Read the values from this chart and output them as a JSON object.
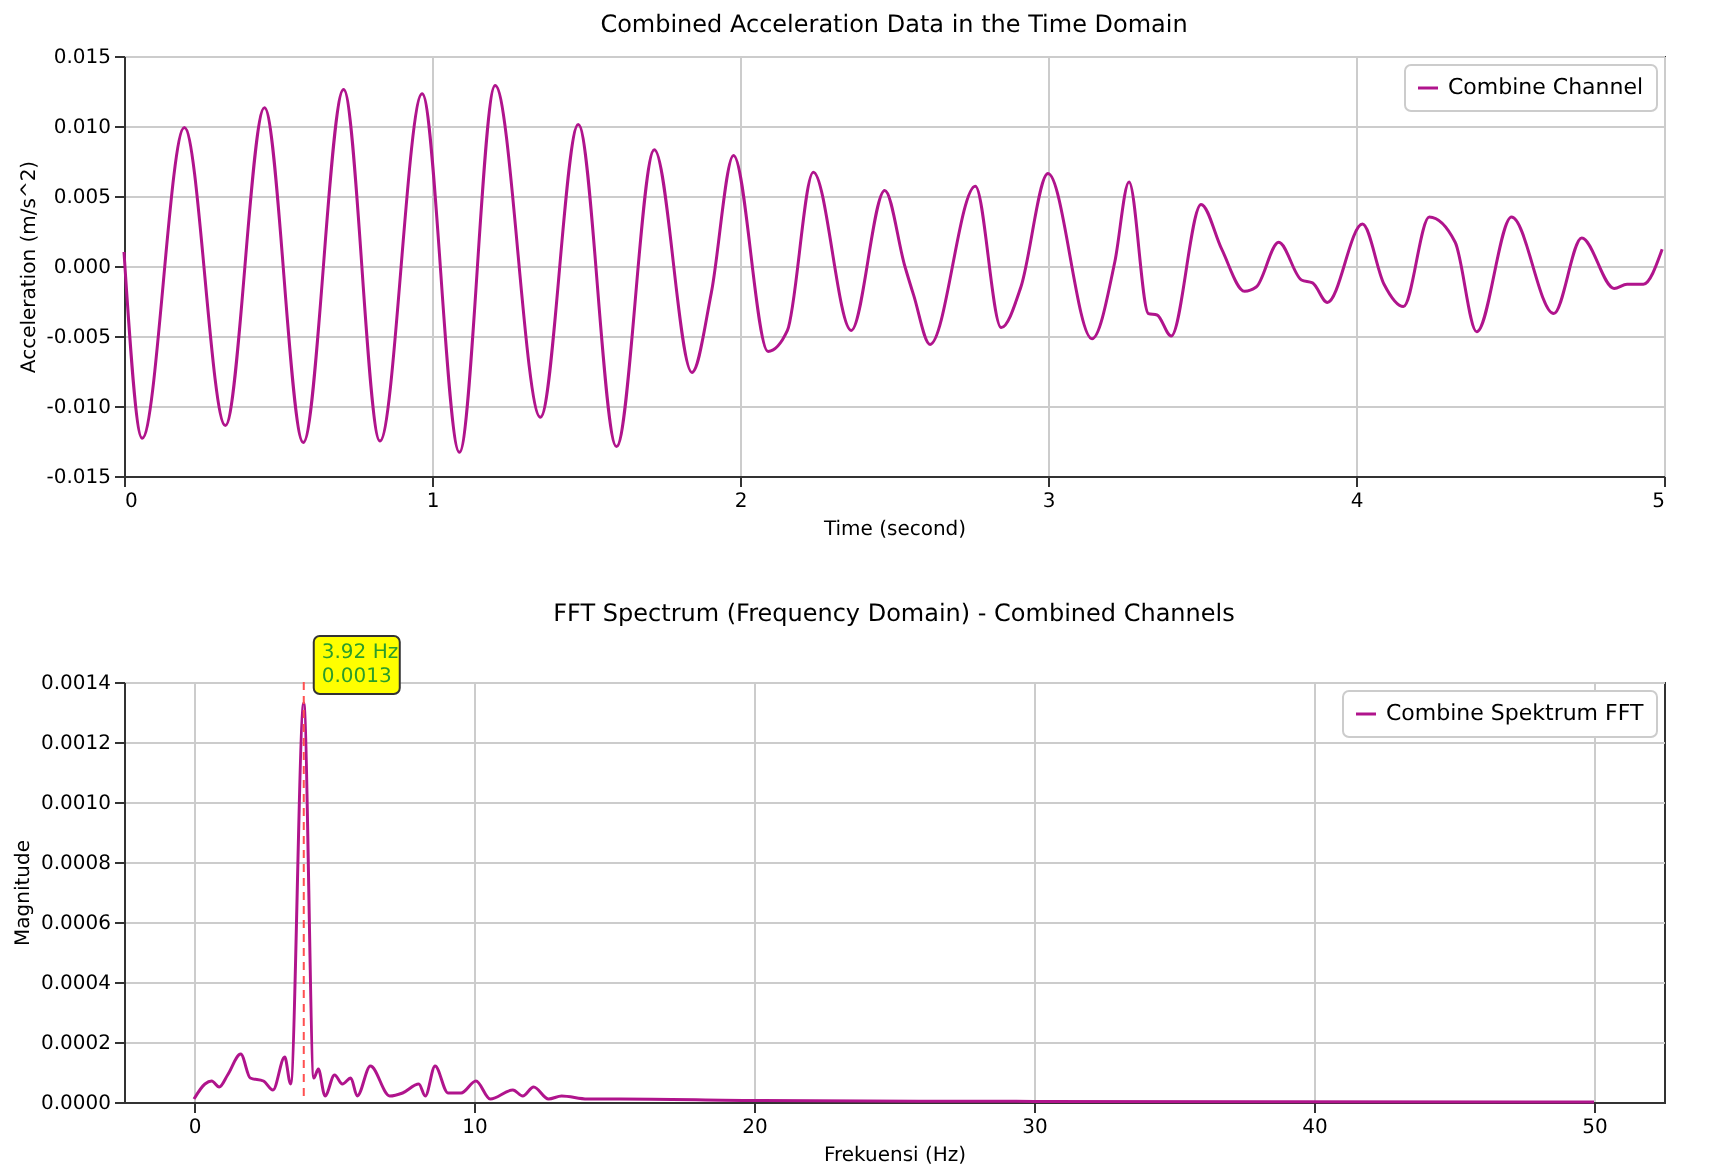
{
  "chart_data": [
    {
      "type": "line",
      "title": "Combined Acceleration Data in the Time Domain",
      "xlabel": "Time (second)",
      "ylabel": "Acceleration (m/s^2)",
      "xlim": [
        0,
        5
      ],
      "ylim": [
        -0.015,
        0.015
      ],
      "xticks": [
        0,
        1,
        2,
        3,
        4,
        5
      ],
      "yticks": [
        {
          "value": -0.015,
          "label": "-0.015"
        },
        {
          "value": -0.01,
          "label": "-0.010"
        },
        {
          "value": -0.005,
          "label": "-0.005"
        },
        {
          "value": 0,
          "label": "0.000"
        },
        {
          "value": 0.005,
          "label": "0.005"
        },
        {
          "value": 0.01,
          "label": "0.010"
        },
        {
          "value": 0.015,
          "label": "0.015"
        }
      ],
      "grid": true,
      "legend": "top right",
      "series": [
        {
          "name": "Combine Channel",
          "color": "#b0148c",
          "x": [
            0,
            0.059,
            0.196,
            0.329,
            0.456,
            0.582,
            0.713,
            0.831,
            0.968,
            1.089,
            1.205,
            1.352,
            1.475,
            1.599,
            1.722,
            1.844,
            1.907,
            1.979,
            2.091,
            2.154,
            2.238,
            2.361,
            2.47,
            2.535,
            2.564,
            2.617,
            2.764,
            2.848,
            2.912,
            3.0,
            3.143,
            3.217,
            3.263,
            3.326,
            3.354,
            3.4,
            3.497,
            3.564,
            3.638,
            3.676,
            3.749,
            3.823,
            3.859,
            3.907,
            4.021,
            4.091,
            4.154,
            4.238,
            4.322,
            4.392,
            4.505,
            4.642,
            4.733,
            4.838,
            4.88,
            4.933,
            4.994
          ],
          "values": [
            0.001,
            -0.0123,
            0.0099,
            -0.0114,
            0.0113,
            -0.0126,
            0.0126,
            -0.0125,
            0.0123,
            -0.0133,
            0.0129,
            -0.0108,
            0.0101,
            -0.0129,
            0.0083,
            -0.0076,
            -0.0019,
            0.0079,
            -0.0061,
            -0.0046,
            0.0067,
            -0.0046,
            0.0054,
            0.0,
            -0.0021,
            -0.0056,
            0.0057,
            -0.0044,
            -0.0015,
            0.0066,
            -0.0052,
            0.0003,
            0.006,
            -0.0034,
            -0.0035,
            -0.005,
            0.0044,
            0.0012,
            -0.0018,
            -0.0015,
            0.0017,
            -0.001,
            -0.0012,
            -0.0026,
            0.003,
            -0.0013,
            -0.0029,
            0.0035,
            0.0017,
            -0.0047,
            0.0035,
            -0.0034,
            0.002,
            -0.0016,
            -0.0013,
            -0.0013,
            0.0012
          ]
        }
      ]
    },
    {
      "type": "line",
      "title": "FFT Spectrum (Frequency Domain) - Combined Channels",
      "xlabel": "Frekuensi (Hz)",
      "ylabel": "Magnitude",
      "xlim": [
        -2.5,
        52.5
      ],
      "ylim": [
        0,
        0.0014
      ],
      "xticks": [
        0,
        10,
        20,
        30,
        40,
        50
      ],
      "yticks": [
        {
          "value": 0,
          "label": "0.0000"
        },
        {
          "value": 0.0002,
          "label": "0.0002"
        },
        {
          "value": 0.0004,
          "label": "0.0004"
        },
        {
          "value": 0.0006,
          "label": "0.0006"
        },
        {
          "value": 0.0008,
          "label": "0.0008"
        },
        {
          "value": 0.001,
          "label": "0.0010"
        },
        {
          "value": 0.0012,
          "label": "0.0012"
        },
        {
          "value": 0.0014,
          "label": "0.0014"
        }
      ],
      "grid": true,
      "legend": "top right",
      "ref_lines": [
        {
          "axis": "x",
          "value": 3.92,
          "color": "#ff5050",
          "line_style": "dashed"
        }
      ],
      "annotations": [
        {
          "text": "3.92 Hz\n0.0013",
          "x": 3.92,
          "y": 0.0013
        }
      ],
      "series": [
        {
          "name": "Combine Spektrum FFT",
          "color": "#b0148c",
          "x": [
            0,
            0.39,
            0.63,
            0.9,
            1.2,
            1.67,
            2.01,
            2.48,
            2.82,
            3.24,
            3.45,
            3.92,
            4.28,
            4.44,
            4.68,
            5.02,
            5.3,
            5.6,
            5.83,
            6.3,
            6.99,
            7.45,
            8.03,
            8.26,
            8.61,
            9.07,
            9.54,
            10.07,
            10.58,
            11.39,
            11.74,
            12.13,
            12.66,
            13.13,
            14.05,
            15.2,
            20,
            30,
            50
          ],
          "values": [
            1e-05,
            6e-05,
            7e-05,
            5e-05,
            9e-05,
            0.00016,
            8e-05,
            7e-05,
            4e-05,
            0.00015,
            6e-05,
            0.00133,
            8e-05,
            0.00011,
            2e-05,
            9e-05,
            6e-05,
            8e-05,
            2e-05,
            0.00012,
            2e-05,
            3e-05,
            6e-05,
            2e-05,
            0.00012,
            3e-05,
            3e-05,
            7e-05,
            1e-05,
            4e-05,
            2e-05,
            5e-05,
            1e-05,
            2e-05,
            1e-05,
            1e-05,
            5e-06,
            2e-06,
            0
          ]
        }
      ]
    }
  ]
}
